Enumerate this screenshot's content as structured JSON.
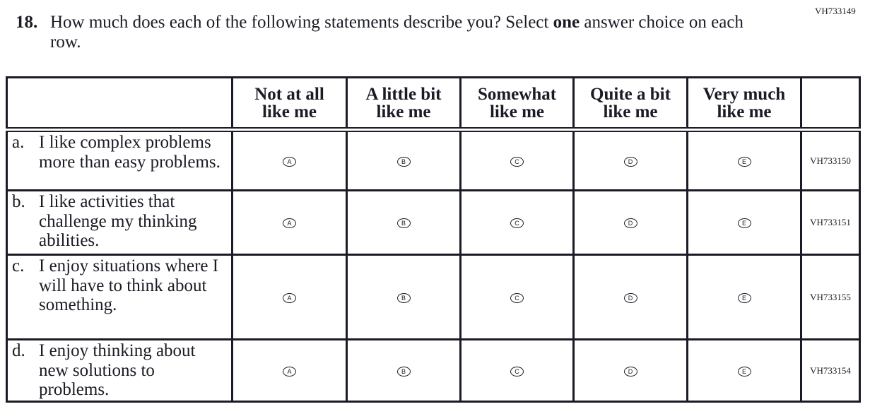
{
  "question_id": "VH733149",
  "question": {
    "number": "18.",
    "text_before": "How much does each of the following statements describe you? Select ",
    "text_bold": "one",
    "text_after": " answer choice on each row."
  },
  "columns": [
    {
      "line1": "Not at all",
      "line2": "like me"
    },
    {
      "line1": "A little bit",
      "line2": "like me"
    },
    {
      "line1": "Somewhat",
      "line2": "like me"
    },
    {
      "line1": "Quite a bit",
      "line2": "like me"
    },
    {
      "line1": "Very much",
      "line2": "like me"
    }
  ],
  "options": [
    "A",
    "B",
    "C",
    "D",
    "E"
  ],
  "rows": [
    {
      "label": "a.",
      "text": "I like complex problems more than easy problems.",
      "code": "VH733150"
    },
    {
      "label": "b.",
      "text": "I like activities that challenge my thinking abilities.",
      "code": "VH733151"
    },
    {
      "label": "c.",
      "text": "I enjoy situations where I will have to think about something.",
      "code": "VH733155"
    },
    {
      "label": "d.",
      "text": "I enjoy thinking about new solutions to problems.",
      "code": "VH733154"
    }
  ]
}
